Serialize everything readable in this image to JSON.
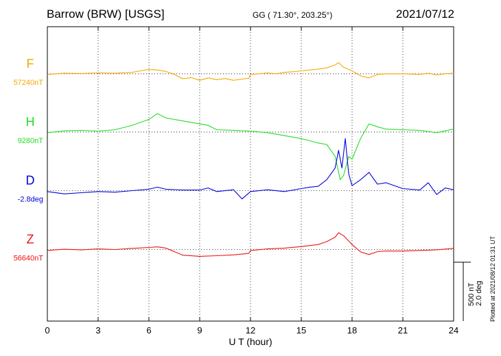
{
  "header": {
    "station": "Barrow (BRW)  [USGS]",
    "coords": "GG ( 71.30°, 203.25°)",
    "date": "2021/07/12"
  },
  "plotted_note": "Plotted at 2021/08/12 01:31  UT",
  "scale": {
    "nt": "500 nT",
    "deg": "2.0 deg"
  },
  "colors": {
    "F": "#f5a800",
    "H": "#22dd22",
    "D": "#0000dd",
    "Z": "#ee1111"
  },
  "chart_data": {
    "type": "line",
    "xlabel": "U T (hour)",
    "xlim": [
      0,
      24
    ],
    "x_ticks": [
      0,
      3,
      6,
      9,
      12,
      15,
      18,
      21,
      24
    ],
    "x_tick_labels": [
      "0",
      "3",
      "6",
      "9",
      "12",
      "15",
      "18",
      "21",
      "24"
    ],
    "ylim": [
      0,
      1
    ],
    "grid": true,
    "series": [
      {
        "name": "F",
        "baseline": "57240nT",
        "baseline_level": 0.84,
        "x": [
          0,
          1,
          2,
          3,
          4,
          5,
          5.5,
          6,
          6.5,
          7,
          7.5,
          8,
          8.5,
          9,
          9.5,
          10,
          10.5,
          11,
          11.5,
          11.9,
          12,
          12.5,
          13,
          13.5,
          14,
          14.5,
          15,
          15.5,
          16,
          16.5,
          17,
          17.2,
          17.5,
          18,
          18.5,
          19,
          19.5,
          20,
          21,
          22,
          22.5,
          23,
          23.5,
          24
        ],
        "values": [
          0.838,
          0.842,
          0.841,
          0.843,
          0.842,
          0.845,
          0.85,
          0.855,
          0.853,
          0.848,
          0.838,
          0.823,
          0.827,
          0.818,
          0.826,
          0.82,
          0.824,
          0.818,
          0.822,
          0.825,
          0.838,
          0.84,
          0.843,
          0.84,
          0.845,
          0.847,
          0.85,
          0.853,
          0.856,
          0.86,
          0.87,
          0.878,
          0.862,
          0.85,
          0.833,
          0.826,
          0.838,
          0.84,
          0.84,
          0.838,
          0.842,
          0.836,
          0.84,
          0.842
        ]
      },
      {
        "name": "H",
        "baseline": "9280nT",
        "baseline_level": 0.642,
        "x": [
          0,
          1,
          2,
          3,
          4,
          5,
          6,
          6.5,
          7,
          8,
          9,
          9.5,
          10,
          11,
          12,
          13,
          14,
          15,
          16,
          16.5,
          17,
          17.3,
          17.5,
          17.8,
          18,
          18.5,
          19,
          19.5,
          20,
          21,
          22,
          23,
          24
        ],
        "values": [
          0.64,
          0.646,
          0.648,
          0.645,
          0.65,
          0.665,
          0.685,
          0.705,
          0.69,
          0.68,
          0.67,
          0.665,
          0.65,
          0.648,
          0.645,
          0.64,
          0.63,
          0.62,
          0.605,
          0.6,
          0.56,
          0.48,
          0.495,
          0.56,
          0.55,
          0.62,
          0.67,
          0.66,
          0.652,
          0.65,
          0.648,
          0.64,
          0.652
        ]
      },
      {
        "name": "D",
        "baseline": "-2.8deg",
        "baseline_level": 0.443,
        "x": [
          0,
          1,
          2,
          3,
          4,
          5,
          6,
          6.5,
          7,
          8,
          9,
          9.5,
          10,
          11,
          11.5,
          12,
          13,
          14,
          15,
          15.5,
          16,
          16.5,
          17,
          17.2,
          17.4,
          17.6,
          17.8,
          18,
          18.5,
          19,
          19.5,
          20,
          21,
          22,
          22.5,
          23,
          23.5,
          24
        ],
        "values": [
          0.44,
          0.432,
          0.436,
          0.44,
          0.438,
          0.443,
          0.448,
          0.455,
          0.448,
          0.445,
          0.445,
          0.452,
          0.44,
          0.446,
          0.415,
          0.44,
          0.446,
          0.44,
          0.45,
          0.455,
          0.458,
          0.48,
          0.52,
          0.58,
          0.52,
          0.62,
          0.5,
          0.46,
          0.48,
          0.505,
          0.465,
          0.47,
          0.45,
          0.445,
          0.47,
          0.43,
          0.452,
          0.446
        ]
      },
      {
        "name": "Z",
        "baseline": "56640nT",
        "baseline_level": 0.243,
        "x": [
          0,
          1,
          2,
          3,
          4,
          5,
          6,
          6.5,
          7,
          8,
          9,
          10,
          11,
          11.9,
          12,
          13,
          14,
          15,
          16,
          16.5,
          17,
          17.2,
          17.5,
          18,
          18.5,
          19,
          19.5,
          20,
          21,
          22,
          23,
          24
        ],
        "values": [
          0.24,
          0.244,
          0.242,
          0.245,
          0.243,
          0.247,
          0.25,
          0.252,
          0.248,
          0.224,
          0.22,
          0.222,
          0.225,
          0.23,
          0.24,
          0.245,
          0.248,
          0.253,
          0.26,
          0.27,
          0.285,
          0.3,
          0.29,
          0.26,
          0.235,
          0.226,
          0.236,
          0.238,
          0.238,
          0.24,
          0.242,
          0.247
        ]
      }
    ]
  }
}
